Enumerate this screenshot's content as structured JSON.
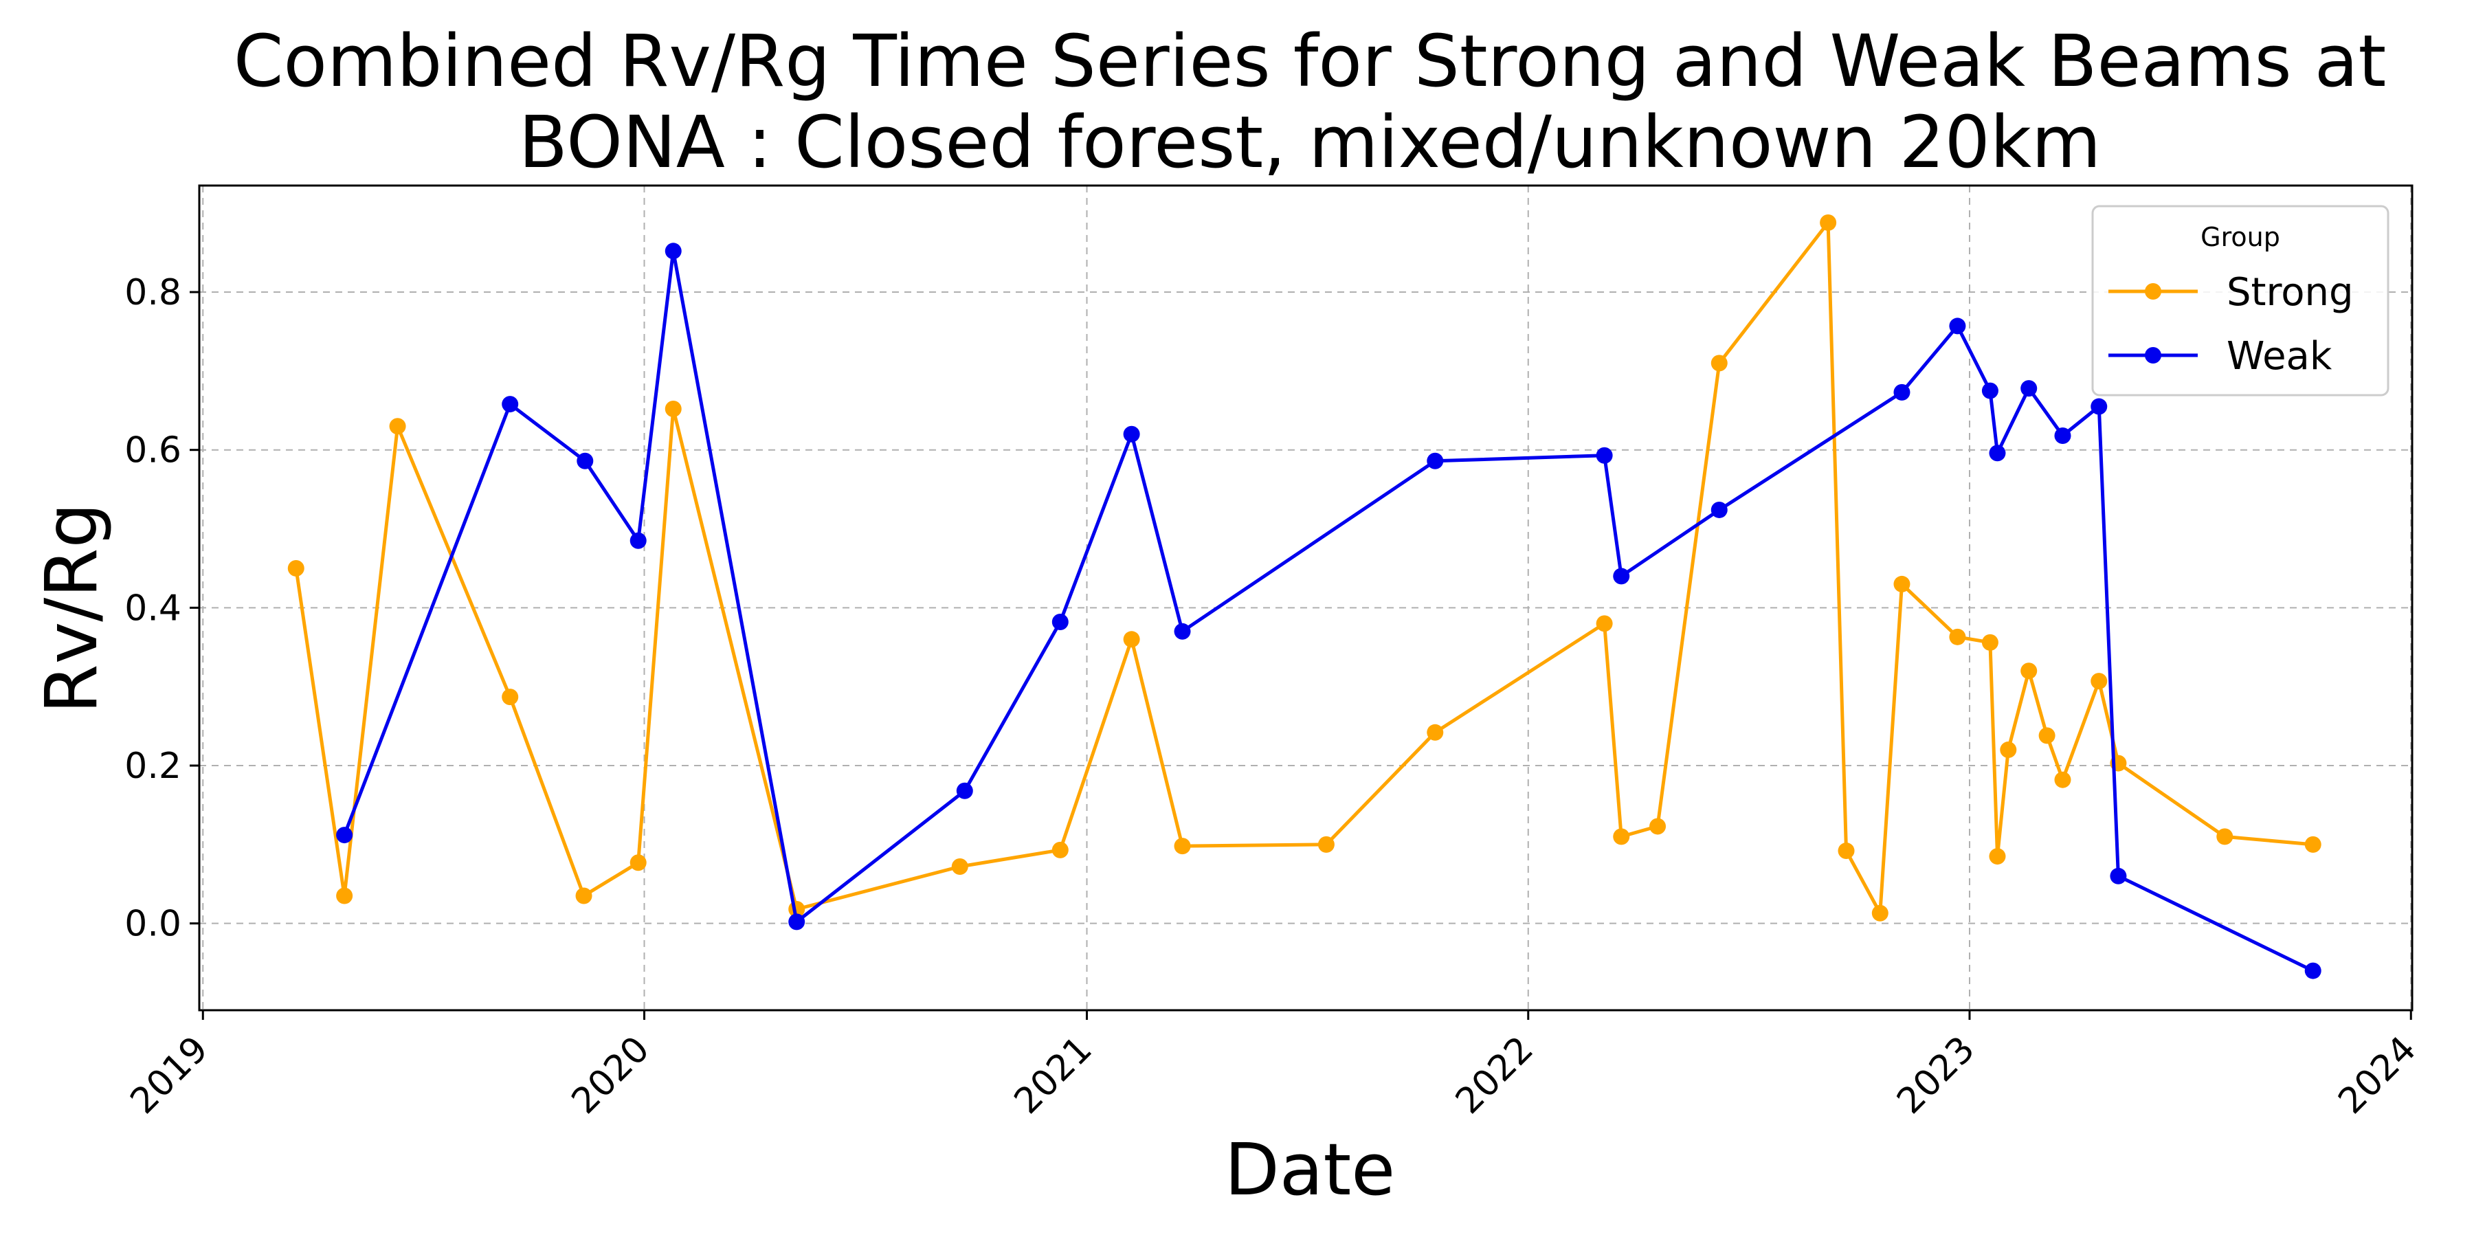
{
  "chart_data": {
    "type": "line",
    "title": [
      "Combined Rv/Rg Time Series for Strong and Weak Beams at",
      "BONA : Closed forest, mixed/unknown 20km"
    ],
    "xlabel": "Date",
    "ylabel": "Rv/Rg",
    "x_scale": "time",
    "xlim": [
      "2018-12-29",
      "2024-01-02"
    ],
    "ylim": [
      -0.11,
      0.935
    ],
    "x_ticks": [
      "2019-01-01",
      "2020-01-01",
      "2021-01-01",
      "2022-01-01",
      "2023-01-01",
      "2024-01-01"
    ],
    "x_tick_labels": [
      "2019",
      "2020",
      "2021",
      "2022",
      "2023",
      "2024"
    ],
    "x_tick_rotation": 45,
    "y_ticks": [
      0.0,
      0.2,
      0.4,
      0.6,
      0.8
    ],
    "y_tick_labels": [
      "0.0",
      "0.2",
      "0.4",
      "0.6",
      "0.8"
    ],
    "grid": true,
    "legend": {
      "title": "Group",
      "position": "top-right"
    },
    "series": [
      {
        "name": "Strong",
        "color": "#FFA500",
        "marker": "circle",
        "x": [
          "2019-03-19",
          "2019-04-28",
          "2019-06-11",
          "2019-09-12",
          "2019-11-12",
          "2019-12-27",
          "2020-01-25",
          "2020-05-06",
          "2020-09-18",
          "2020-12-10",
          "2021-02-07",
          "2021-03-21",
          "2021-07-18",
          "2021-10-16",
          "2022-03-05",
          "2022-03-19",
          "2022-04-18",
          "2022-06-08",
          "2022-09-06",
          "2022-09-21",
          "2022-10-19",
          "2022-11-06",
          "2022-12-22",
          "2023-01-18",
          "2023-01-24",
          "2023-02-02",
          "2023-02-19",
          "2023-03-06",
          "2023-03-19",
          "2023-04-18",
          "2023-05-04",
          "2023-07-31",
          "2023-10-12"
        ],
        "y": [
          0.45,
          0.035,
          0.63,
          0.287,
          0.035,
          0.077,
          0.652,
          0.018,
          0.072,
          0.093,
          0.36,
          0.098,
          0.1,
          0.242,
          0.38,
          0.11,
          0.123,
          0.71,
          0.888,
          0.092,
          0.013,
          0.43,
          0.363,
          0.356,
          0.085,
          0.22,
          0.32,
          0.238,
          0.182,
          0.307,
          0.203,
          0.11,
          0.1
        ]
      },
      {
        "name": "Weak",
        "color": "#0000EE",
        "marker": "circle",
        "x": [
          "2019-04-28",
          "2019-09-12",
          "2019-11-13",
          "2019-12-27",
          "2020-01-25",
          "2020-05-06",
          "2020-09-22",
          "2020-12-10",
          "2021-02-07",
          "2021-03-21",
          "2021-10-16",
          "2022-03-05",
          "2022-03-19",
          "2022-06-08",
          "2022-11-06",
          "2022-12-22",
          "2023-01-18",
          "2023-01-24",
          "2023-02-19",
          "2023-03-19",
          "2023-04-18",
          "2023-05-04",
          "2023-10-12"
        ],
        "y": [
          0.112,
          0.658,
          0.586,
          0.485,
          0.852,
          0.002,
          0.168,
          0.382,
          0.62,
          0.37,
          0.586,
          0.593,
          0.44,
          0.524,
          0.673,
          0.757,
          0.675,
          0.596,
          0.678,
          0.618,
          0.655,
          0.06,
          -0.06
        ]
      }
    ]
  }
}
